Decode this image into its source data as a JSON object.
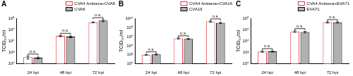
{
  "chart_data": [
    {
      "type": "bar",
      "title": "A",
      "ylabel": "TCID₅₀/ml",
      "categories": [
        "24 hpi",
        "48 hpi",
        "72 hpi"
      ],
      "log": "y",
      "ylim": [
        1,
        100000000
      ],
      "yticks": [
        {
          "value": 1,
          "label": "10⁰"
        },
        {
          "value": 100,
          "label": "10²"
        },
        {
          "value": 10000,
          "label": "10⁴"
        },
        {
          "value": 1000000,
          "label": "10⁶"
        },
        {
          "value": 100000000,
          "label": "10⁸"
        }
      ],
      "legend": "upper right",
      "series": [
        {
          "name": "CVA4 Antisera+CVA6",
          "color": "#ffffff",
          "values": [
            15,
            80000,
            20000000
          ],
          "errors": [
            8,
            20000,
            3000000
          ]
        },
        {
          "name": "CVA6",
          "color": "#b0b0b0",
          "values": [
            12,
            60000,
            40000000
          ],
          "errors": [
            4,
            20000,
            15000000
          ]
        }
      ],
      "annotations": [
        "n.s.",
        "n.s.",
        "n.s."
      ]
    },
    {
      "type": "bar",
      "title": "B",
      "ylabel": "TCID₅₀/ml",
      "categories": [
        "24 hpi",
        "48 hpi",
        "72 hpi"
      ],
      "log": "y",
      "ylim": [
        1,
        10000000000
      ],
      "yticks": [
        {
          "value": 1,
          "label": "10⁰"
        },
        {
          "value": 100,
          "label": "10²"
        },
        {
          "value": 10000,
          "label": "10⁴"
        },
        {
          "value": 1000000,
          "label": "10⁶"
        },
        {
          "value": 100000000,
          "label": "10⁸"
        },
        {
          "value": 10000000000,
          "label": "10¹⁰"
        }
      ],
      "legend": "upper right",
      "series": [
        {
          "name": "CVA4 Antisera+CVA16",
          "color": "#ffffff",
          "values": [
            100,
            400000,
            2000000000
          ],
          "errors": [
            20,
            100000,
            500000000
          ]
        },
        {
          "name": "CVA16",
          "color": "#b0b0b0",
          "values": [
            120,
            300000,
            1000000000
          ],
          "errors": [
            30,
            80000,
            300000000
          ]
        }
      ],
      "annotations": [
        "n.s.",
        "n.s.",
        "n.s."
      ]
    },
    {
      "type": "bar",
      "title": "C",
      "ylabel": "TCID₅₀/ml",
      "categories": [
        "24 hpi",
        "48 hpi",
        "72 hpi"
      ],
      "log": "y",
      "ylim": [
        1,
        100000000
      ],
      "yticks": [
        {
          "value": 1,
          "label": "10⁰"
        },
        {
          "value": 100,
          "label": "10²"
        },
        {
          "value": 10000,
          "label": "10⁴"
        },
        {
          "value": 1000000,
          "label": "10⁶"
        },
        {
          "value": 100000000,
          "label": "10⁸"
        }
      ],
      "legend": "upper right",
      "series": [
        {
          "name": "CVA4 Antisera+EVA71",
          "color": "#ffffff",
          "values": [
            150,
            500000,
            20000000
          ],
          "errors": [
            40,
            150000,
            5000000
          ]
        },
        {
          "name": "EVA71",
          "color": "#b0b0b0",
          "values": [
            160,
            400000,
            20000000
          ],
          "errors": [
            40,
            120000,
            5000000
          ]
        }
      ],
      "annotations": [
        "n.s.",
        "n.s.",
        "n.s."
      ]
    }
  ]
}
